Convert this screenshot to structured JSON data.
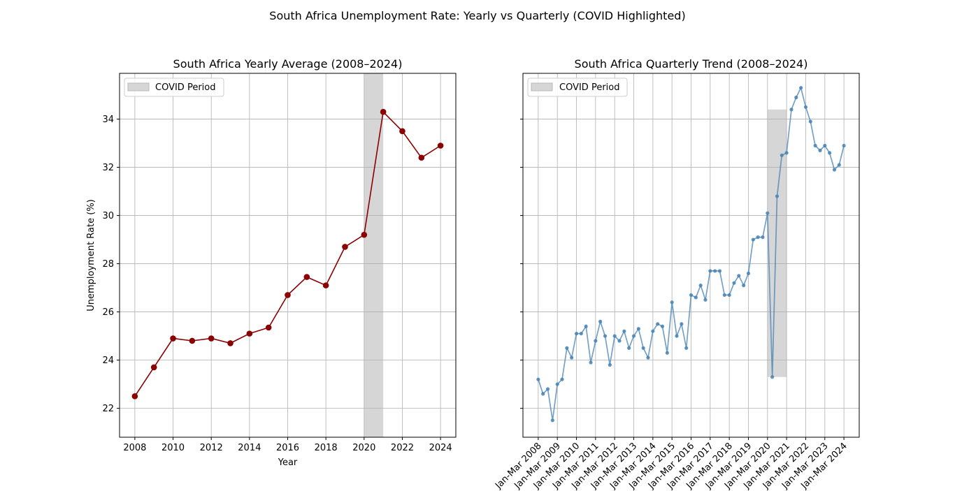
{
  "figure": {
    "suptitle": "South Africa Unemployment Rate: Yearly vs Quarterly (COVID Highlighted)"
  },
  "colors": {
    "yearly_line": "#8b0000",
    "quarterly_line": "#4682b4",
    "covid_span": "#808080",
    "grid": "#b0b0b0"
  },
  "chart_data": [
    {
      "type": "line",
      "title": "South Africa Yearly Average (2008–2024)",
      "xlabel": "Year",
      "ylabel": "Unemployment Rate (%)",
      "x": [
        2008,
        2009,
        2010,
        2011,
        2012,
        2013,
        2014,
        2015,
        2016,
        2017,
        2018,
        2019,
        2020,
        2021,
        2022,
        2023,
        2024
      ],
      "series": [
        {
          "values": [
            22.5,
            23.7,
            24.9,
            24.8,
            24.9,
            24.7,
            25.1,
            25.35,
            26.7,
            27.45,
            27.1,
            28.7,
            29.2,
            34.3,
            33.5,
            32.4,
            32.9
          ],
          "marker": "circle"
        }
      ],
      "xticks": [
        "2008",
        "2010",
        "2012",
        "2014",
        "2016",
        "2018",
        "2020",
        "2022",
        "2024"
      ],
      "xlim": [
        2007.2,
        2024.8
      ],
      "ylim": [
        20.8,
        35.9
      ],
      "yticks": [
        "22",
        "24",
        "26",
        "28",
        "30",
        "32",
        "34"
      ],
      "grid": true,
      "legend": {
        "position": "upper-left",
        "entries": [
          "COVID Period"
        ]
      },
      "highlight": {
        "label": "COVID Period",
        "x_from": 2020,
        "x_to": 2021
      }
    },
    {
      "type": "line",
      "title": "South Africa Quarterly Trend (2008–2024)",
      "xlabel": "",
      "ylabel": "",
      "x": [
        "Jan-Mar 2008",
        "Apr-Jun 2008",
        "Jul-Sep 2008",
        "Oct-Dec 2008",
        "Jan-Mar 2009",
        "Apr-Jun 2009",
        "Jul-Sep 2009",
        "Oct-Dec 2009",
        "Jan-Mar 2010",
        "Apr-Jun 2010",
        "Jul-Sep 2010",
        "Oct-Dec 2010",
        "Jan-Mar 2011",
        "Apr-Jun 2011",
        "Jul-Sep 2011",
        "Oct-Dec 2011",
        "Jan-Mar 2012",
        "Apr-Jun 2012",
        "Jul-Sep 2012",
        "Oct-Dec 2012",
        "Jan-Mar 2013",
        "Apr-Jun 2013",
        "Jul-Sep 2013",
        "Oct-Dec 2013",
        "Jan-Mar 2014",
        "Apr-Jun 2014",
        "Jul-Sep 2014",
        "Oct-Dec 2014",
        "Jan-Mar 2015",
        "Apr-Jun 2015",
        "Jul-Sep 2015",
        "Oct-Dec 2015",
        "Jan-Mar 2016",
        "Apr-Jun 2016",
        "Jul-Sep 2016",
        "Oct-Dec 2016",
        "Jan-Mar 2017",
        "Apr-Jun 2017",
        "Jul-Sep 2017",
        "Oct-Dec 2017",
        "Jan-Mar 2018",
        "Apr-Jun 2018",
        "Jul-Sep 2018",
        "Oct-Dec 2018",
        "Jan-Mar 2019",
        "Apr-Jun 2019",
        "Jul-Sep 2019",
        "Oct-Dec 2019",
        "Jan-Mar 2020",
        "Apr-Jun 2020",
        "Jul-Sep 2020",
        "Oct-Dec 2020",
        "Jan-Mar 2021",
        "Apr-Jun 2021",
        "Jul-Sep 2021",
        "Oct-Dec 2021",
        "Jan-Mar 2022",
        "Apr-Jun 2022",
        "Jul-Sep 2022",
        "Oct-Dec 2022",
        "Jan-Mar 2023",
        "Apr-Jun 2023",
        "Jul-Sep 2023",
        "Oct-Dec 2023",
        "Jan-Mar 2024"
      ],
      "series": [
        {
          "values": [
            23.2,
            22.6,
            22.8,
            21.5,
            23.0,
            23.2,
            24.5,
            24.1,
            25.1,
            25.1,
            25.4,
            23.9,
            24.8,
            25.6,
            25.0,
            23.8,
            25.0,
            24.8,
            25.2,
            24.5,
            25.0,
            25.3,
            24.5,
            24.1,
            25.2,
            25.5,
            25.4,
            24.3,
            26.4,
            25.0,
            25.5,
            24.5,
            26.7,
            26.6,
            27.1,
            26.5,
            27.7,
            27.7,
            27.7,
            26.7,
            26.7,
            27.2,
            27.5,
            27.1,
            27.6,
            29.0,
            29.1,
            29.1,
            30.1,
            23.3,
            30.8,
            32.5,
            32.6,
            34.4,
            34.9,
            35.3,
            34.5,
            33.9,
            32.9,
            32.7,
            32.9,
            32.6,
            31.9,
            32.1,
            32.9
          ],
          "marker": "circle"
        }
      ],
      "xticks": [
        "Jan-Mar 2008",
        "Jan-Mar 2009",
        "Jan-Mar 2010",
        "Jan-Mar 2011",
        "Jan-Mar 2012",
        "Jan-Mar 2013",
        "Jan-Mar 2014",
        "Jan-Mar 2015",
        "Jan-Mar 2016",
        "Jan-Mar 2017",
        "Jan-Mar 2018",
        "Jan-Mar 2019",
        "Jan-Mar 2020",
        "Jan-Mar 2021",
        "Jan-Mar 2022",
        "Jan-Mar 2023",
        "Jan-Mar 2024"
      ],
      "ylim": [
        20.8,
        35.9
      ],
      "grid": true,
      "legend": {
        "position": "upper-left",
        "entries": [
          "COVID Period"
        ]
      },
      "highlight": {
        "label": "COVID Period",
        "x_from": "Jan-Mar 2020",
        "x_to": "Jan-Mar 2021",
        "y_from": 23.3,
        "y_to": 34.4
      }
    }
  ]
}
